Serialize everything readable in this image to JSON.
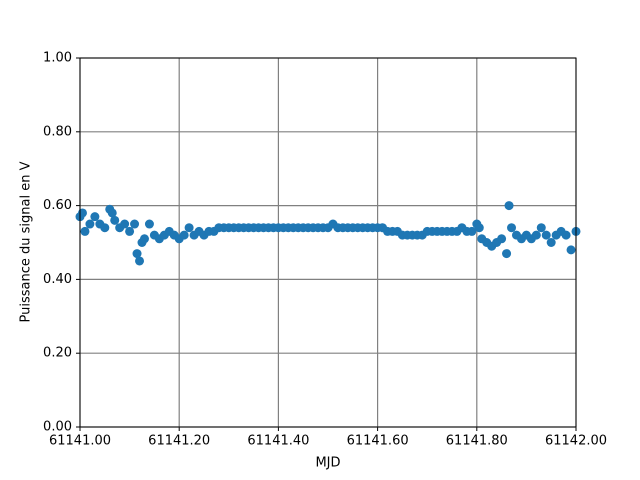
{
  "chart_data": {
    "type": "scatter",
    "xlabel": "MJD",
    "ylabel": "Puissance du signal en V",
    "xlim": [
      61141.0,
      61142.0
    ],
    "xticks": [
      {
        "value": 61141.0,
        "label": "61141.00"
      },
      {
        "value": 61141.2,
        "label": "61141.20"
      },
      {
        "value": 61141.4,
        "label": "61141.40"
      },
      {
        "value": 61141.6,
        "label": "61141.60"
      },
      {
        "value": 61141.8,
        "label": "61141.80"
      },
      {
        "value": 61142.0,
        "label": "61142.00"
      }
    ],
    "ylim": [
      0,
      1
    ],
    "yticks": [
      {
        "value": 0,
        "label": "0.00"
      },
      {
        "value": 0.2,
        "label": "0.20"
      },
      {
        "value": 0.4,
        "label": "0.40"
      },
      {
        "value": 0.6,
        "label": "0.60"
      },
      {
        "value": 0.8,
        "label": "0.80"
      },
      {
        "value": 1,
        "label": "1.00"
      }
    ],
    "grid": true,
    "grid_color": "#808080",
    "series": [
      {
        "color": "#1f77b4",
        "x": [
          61141.0,
          61141.005,
          61141.01,
          61141.02,
          61141.03,
          61141.04,
          61141.05,
          61141.06,
          61141.065,
          61141.07,
          61141.08,
          61141.09,
          61141.1,
          61141.11,
          61141.115,
          61141.12,
          61141.125,
          61141.13,
          61141.14,
          61141.15,
          61141.16,
          61141.17,
          61141.18,
          61141.19,
          61141.2,
          61141.21,
          61141.22,
          61141.23,
          61141.24,
          61141.25,
          61141.26,
          61141.27,
          61141.28,
          61141.29,
          61141.3,
          61141.31,
          61141.32,
          61141.33,
          61141.34,
          61141.35,
          61141.36,
          61141.37,
          61141.38,
          61141.39,
          61141.4,
          61141.41,
          61141.42,
          61141.43,
          61141.44,
          61141.45,
          61141.46,
          61141.47,
          61141.48,
          61141.49,
          61141.5,
          61141.51,
          61141.52,
          61141.53,
          61141.54,
          61141.55,
          61141.56,
          61141.57,
          61141.58,
          61141.59,
          61141.6,
          61141.61,
          61141.62,
          61141.63,
          61141.64,
          61141.65,
          61141.66,
          61141.67,
          61141.68,
          61141.69,
          61141.7,
          61141.71,
          61141.72,
          61141.73,
          61141.74,
          61141.75,
          61141.76,
          61141.77,
          61141.78,
          61141.79,
          61141.8,
          61141.805,
          61141.81,
          61141.82,
          61141.83,
          61141.84,
          61141.85,
          61141.86,
          61141.865,
          61141.87,
          61141.88,
          61141.89,
          61141.9,
          61141.91,
          61141.92,
          61141.93,
          61141.94,
          61141.95,
          61141.96,
          61141.97,
          61141.98,
          61141.99,
          61142.0
        ],
        "values": [
          0.57,
          0.58,
          0.53,
          0.55,
          0.57,
          0.55,
          0.54,
          0.59,
          0.58,
          0.56,
          0.54,
          0.55,
          0.53,
          0.55,
          0.47,
          0.45,
          0.5,
          0.51,
          0.55,
          0.52,
          0.51,
          0.52,
          0.53,
          0.52,
          0.51,
          0.52,
          0.54,
          0.52,
          0.53,
          0.52,
          0.53,
          0.53,
          0.54,
          0.54,
          0.54,
          0.54,
          0.54,
          0.54,
          0.54,
          0.54,
          0.54,
          0.54,
          0.54,
          0.54,
          0.54,
          0.54,
          0.54,
          0.54,
          0.54,
          0.54,
          0.54,
          0.54,
          0.54,
          0.54,
          0.54,
          0.55,
          0.54,
          0.54,
          0.54,
          0.54,
          0.54,
          0.54,
          0.54,
          0.54,
          0.54,
          0.54,
          0.53,
          0.53,
          0.53,
          0.52,
          0.52,
          0.52,
          0.52,
          0.52,
          0.53,
          0.53,
          0.53,
          0.53,
          0.53,
          0.53,
          0.53,
          0.54,
          0.53,
          0.53,
          0.55,
          0.54,
          0.51,
          0.5,
          0.49,
          0.5,
          0.51,
          0.47,
          0.6,
          0.54,
          0.52,
          0.51,
          0.52,
          0.51,
          0.52,
          0.54,
          0.52,
          0.5,
          0.52,
          0.53,
          0.52,
          0.48,
          0.53
        ]
      }
    ]
  }
}
